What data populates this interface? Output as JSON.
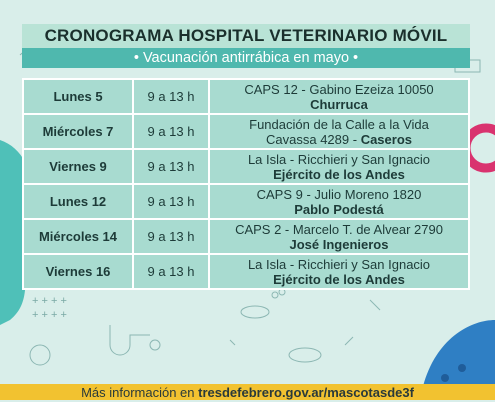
{
  "title": "CRONOGRAMA HOSPITAL VETERINARIO MÓVIL",
  "subtitle": "• Vacunación antirrábica en mayo •",
  "rows": [
    {
      "day": "Lunes 5",
      "hours": "9 a 13 h",
      "address": [
        "CAPS 12 -  Gabino Ezeiza 10050"
      ],
      "locality": "Churruca"
    },
    {
      "day": "Miércoles 7",
      "hours": "9 a 13 h",
      "address": [
        "Fundación de la Calle a la Vida",
        "Cavassa 4289 -"
      ],
      "locality": "Caseros"
    },
    {
      "day": "Viernes 9",
      "hours": "9 a 13 h",
      "address": [
        "La Isla - Ricchieri y San Ignacio"
      ],
      "locality": "Ejército de los Andes"
    },
    {
      "day": "Lunes  12",
      "hours": "9 a 13 h",
      "address": [
        "CAPS 9 - Julio Moreno 1820"
      ],
      "locality": "Pablo Podestá"
    },
    {
      "day": "Miércoles 14",
      "hours": "9 a 13 h",
      "address": [
        "CAPS 2 - Marcelo T. de Alvear 2790"
      ],
      "locality": "José Ingenieros"
    },
    {
      "day": "Viernes 16",
      "hours": "9 a 13 h",
      "address": [
        "La Isla - Ricchieri y San Ignacio"
      ],
      "locality": "Ejército de los Andes"
    }
  ],
  "footer": {
    "text": "Más información en",
    "link": "tresdefebrero.gov.ar/mascotasde3f"
  }
}
